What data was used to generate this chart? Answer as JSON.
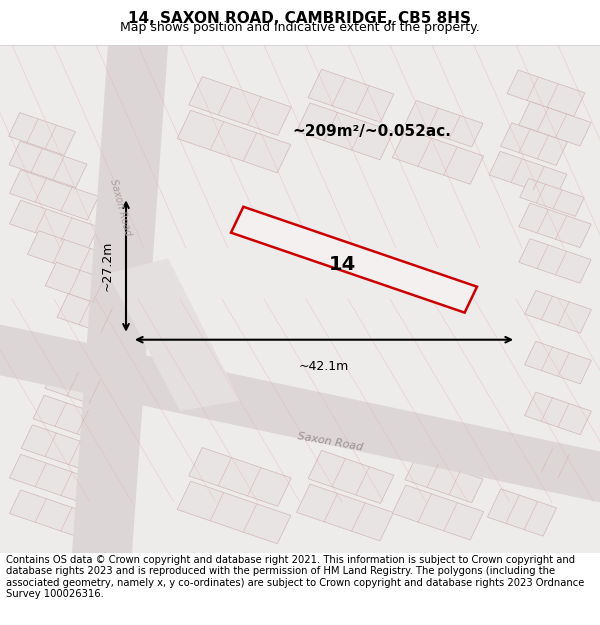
{
  "title": "14, SAXON ROAD, CAMBRIDGE, CB5 8HS",
  "subtitle": "Map shows position and indicative extent of the property.",
  "footer": "Contains OS data © Crown copyright and database right 2021. This information is subject to Crown copyright and database rights 2023 and is reproduced with the permission of HM Land Registry. The polygons (including the associated geometry, namely x, y co-ordinates) are subject to Crown copyright and database rights 2023 Ordnance Survey 100026316.",
  "area_label": "~209m²/~0.052ac.",
  "width_label": "~42.1m",
  "height_label": "~27.2m",
  "property_number": "14",
  "bg_color": "#f5f0f0",
  "map_bg": "#f0eded",
  "road_color": "#e8d8d8",
  "building_fill": "#e8e0e0",
  "building_stroke": "#d0b0b0",
  "highlight_red": "#cc0000",
  "road_label": "Saxon Road",
  "title_fontsize": 11,
  "subtitle_fontsize": 9,
  "footer_fontsize": 7.2
}
